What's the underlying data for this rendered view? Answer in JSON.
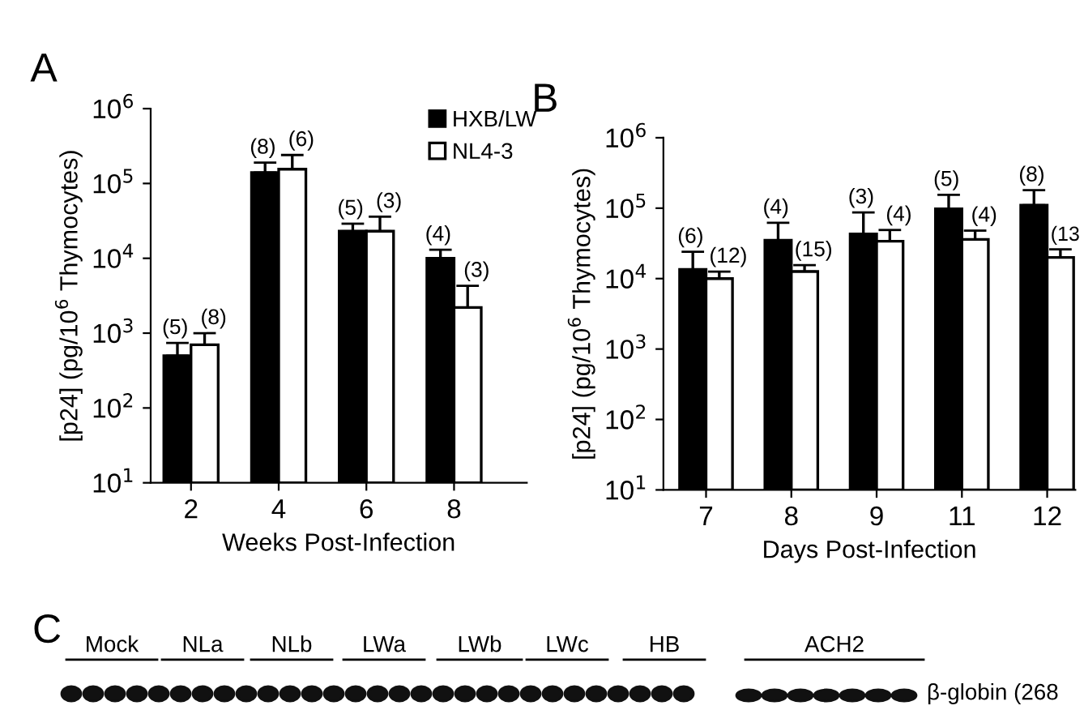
{
  "chart_data": [
    {
      "type": "bar",
      "title": "A",
      "xlabel": "Weeks Post-Infection",
      "ylabel": "[p24] (pg/10$^{6}$ Thymocytes)",
      "categories": [
        "2",
        "4",
        "6",
        "8"
      ],
      "log": true,
      "ylim": [
        10,
        1000000
      ],
      "yticks": [
        {
          "value": 10,
          "label": "10$^{1}$"
        },
        {
          "value": 100,
          "label": "10$^{2}$"
        },
        {
          "value": 1000,
          "label": "10$^{3}$"
        },
        {
          "value": 10000,
          "label": "10$^{4}$"
        },
        {
          "value": 100000,
          "label": "10$^{5}$"
        },
        {
          "value": 1000000,
          "label": "10$^{6}$"
        }
      ],
      "legend": "top right",
      "grid": false,
      "series": [
        {
          "name": "HXB/LW",
          "color": "#000000",
          "values": [
            500,
            140000,
            23000,
            10000
          ],
          "errors": [
            [
              500,
              740
            ],
            [
              140000,
              190000
            ],
            [
              23000,
              29000
            ],
            [
              10000,
              13000
            ]
          ]
        },
        {
          "name": "NL4-3",
          "color": "#ffffff",
          "values": [
            700,
            155000,
            23000,
            2200
          ],
          "errors": [
            [
              700,
              1000
            ],
            [
              155000,
              240000
            ],
            [
              23000,
              36000
            ],
            [
              2200,
              4300
            ]
          ]
        }
      ],
      "annotations": [
        {
          "text": "(5)",
          "x": "2",
          "y": 740
        },
        {
          "text": "(8)",
          "x": "2",
          "y": 1000
        },
        {
          "text": "(8)",
          "x": "4",
          "y": 190000
        },
        {
          "text": "(6)",
          "x": "4",
          "y": 240000
        },
        {
          "text": "(5)",
          "x": "6",
          "y": 29000
        },
        {
          "text": "(3)",
          "x": "6",
          "y": 36000
        },
        {
          "text": "(4)",
          "x": "8",
          "y": 13000
        },
        {
          "text": "(3)",
          "x": "8",
          "y": 4300
        }
      ]
    },
    {
      "type": "bar",
      "title": "B",
      "xlabel": "Days Post-Infection",
      "ylabel": "[p24] (pg/10$^{6}$ Thymocytes)",
      "categories": [
        "7",
        "8",
        "9",
        "11",
        "12"
      ],
      "log": true,
      "ylim": [
        10,
        1000000
      ],
      "yticks": [
        {
          "value": 10,
          "label": "10$^{1}$"
        },
        {
          "value": 100,
          "label": "10$^{2}$"
        },
        {
          "value": 1000,
          "label": "10$^{3}$"
        },
        {
          "value": 10000,
          "label": "10$^{4}$"
        },
        {
          "value": 100000,
          "label": "10$^{5}$"
        },
        {
          "value": 1000000,
          "label": "10$^{6}$"
        }
      ],
      "grid": false,
      "series": [
        {
          "color": "#000000",
          "values": [
            13500,
            35000,
            43000,
            98000,
            110000
          ],
          "errors": [
            [
              13500,
              24000
            ],
            [
              35000,
              62000
            ],
            [
              43000,
              87000
            ],
            [
              98000,
              155000
            ],
            [
              110000,
              180000
            ]
          ]
        },
        {
          "color": "#ffffff",
          "values": [
            10000,
            12600,
            34000,
            36000,
            20000
          ],
          "errors": [
            [
              10000,
              12600
            ],
            [
              12600,
              15500
            ],
            [
              34000,
              49000
            ],
            [
              36000,
              48000
            ],
            [
              20000,
              26000
            ]
          ]
        }
      ],
      "annotations": [
        {
          "text": "(6)",
          "x": "7",
          "y": 24000
        },
        {
          "text": "(12)",
          "x": "7",
          "y": 12600
        },
        {
          "text": "(4)",
          "x": "8",
          "y": 62000
        },
        {
          "text": "(15)",
          "x": "8",
          "y": 15500
        },
        {
          "text": "(3)",
          "x": "9",
          "y": 87000
        },
        {
          "text": "(4)",
          "x": "9",
          "y": 49000
        },
        {
          "text": "(5)",
          "x": "11",
          "y": 155000
        },
        {
          "text": "(4)",
          "x": "11",
          "y": 48000
        },
        {
          "text": "(8)",
          "x": "12",
          "y": 180000
        },
        {
          "text": "(13",
          "x": "12",
          "y": 26000
        }
      ]
    },
    {
      "type": "other",
      "title": "C",
      "annotations": [
        "Mock",
        "NLa",
        "NLb",
        "LWa",
        "LWb",
        "LWc",
        "HB",
        "ACH2",
        "β-globin (268"
      ]
    }
  ]
}
